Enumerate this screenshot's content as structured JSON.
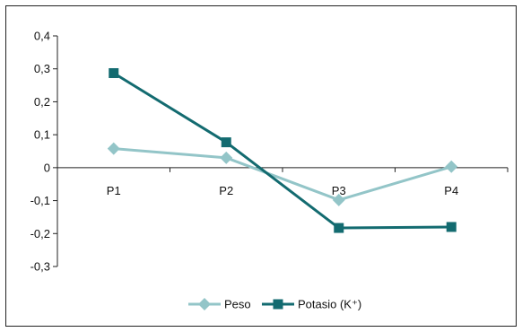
{
  "chart_data": {
    "type": "line",
    "title": "",
    "xlabel": "",
    "ylabel": "",
    "categories": [
      "P1",
      "P2",
      "P3",
      "P4"
    ],
    "ylim": [
      -0.3,
      0.4
    ],
    "yticks": [
      0.4,
      0.3,
      0.2,
      0.1,
      0,
      -0.1,
      -0.2,
      -0.3
    ],
    "ytick_labels": [
      "0,4",
      "0,3",
      "0,2",
      "0,1",
      "0",
      "-0,1",
      "-0,2",
      "-0,3"
    ],
    "grid": false,
    "legend_position": "bottom",
    "series": [
      {
        "name": "Peso",
        "values": [
          0.058,
          0.03,
          -0.098,
          0.003
        ],
        "color": "#93c5c8",
        "marker": "diamond"
      },
      {
        "name": "Potasio (K⁺)",
        "values": [
          0.287,
          0.077,
          -0.183,
          -0.18
        ],
        "color": "#136b70",
        "marker": "square"
      }
    ]
  }
}
